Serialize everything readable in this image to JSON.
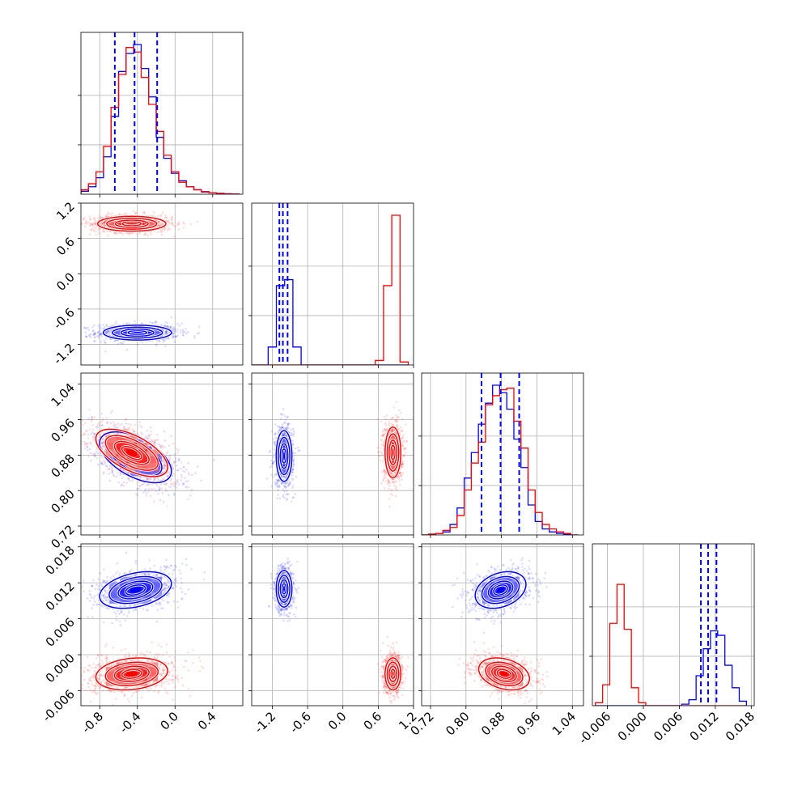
{
  "chart_data": {
    "type": "corner",
    "grid": true,
    "series": [
      {
        "color": "#0000ff"
      },
      {
        "color": "#ff0000"
      }
    ],
    "params": [
      {
        "range": [
          -1.0,
          0.72
        ],
        "ticks": [
          "-0.8",
          "-0.4",
          "0.0",
          "0.4"
        ],
        "tick_values": [
          -0.8,
          -0.4,
          0.0,
          0.4
        ]
      },
      {
        "range": [
          -1.55,
          1.2
        ],
        "ticks": [
          "-1.2",
          "-0.6",
          "0.0",
          "0.6",
          "1.2"
        ],
        "tick_values": [
          -1.2,
          -0.6,
          0.0,
          0.6,
          1.2
        ]
      },
      {
        "range": [
          0.7,
          1.065
        ],
        "ticks": [
          "0.72",
          "0.80",
          "0.88",
          "0.96",
          "1.04"
        ],
        "tick_values": [
          0.72,
          0.8,
          0.88,
          0.96,
          1.04
        ]
      },
      {
        "range": [
          -0.0085,
          0.0185
        ],
        "ticks": [
          "-0.006",
          "0.000",
          "0.006",
          "0.012",
          "0.018"
        ],
        "tick_values": [
          -0.006,
          0.0,
          0.006,
          0.012,
          0.018
        ]
      }
    ],
    "y_tick_labels": {
      "1": [
        "1.2",
        "0.6",
        "0.0",
        "-0.6",
        "-1.2"
      ],
      "2": [
        "1.04",
        "0.96",
        "0.88",
        "0.80",
        "0.72"
      ],
      "3": [
        "0.018",
        "0.012",
        "0.006",
        "0.000",
        "-0.006"
      ]
    },
    "quantile_lines": {
      "0": [
        -0.64,
        -0.43,
        -0.19
      ],
      "1": [
        -1.08,
        -1.02,
        -0.94
      ],
      "2": [
        0.835,
        0.878,
        0.92
      ],
      "3": [
        0.0096,
        0.0108,
        0.0122
      ]
    },
    "histograms": [
      {
        "param": 0,
        "bin_edges": [
          -1.0,
          -0.92,
          -0.84,
          -0.76,
          -0.68,
          -0.6,
          -0.52,
          -0.44,
          -0.36,
          -0.28,
          -0.2,
          -0.12,
          -0.04,
          0.04,
          0.12,
          0.2,
          0.28,
          0.36,
          0.44,
          0.52,
          0.6,
          0.68
        ],
        "series": [
          {
            "color": "#0000ff",
            "counts": [
              0.02,
              0.05,
              0.11,
              0.25,
              0.52,
              0.82,
              0.94,
              1.0,
              0.84,
              0.65,
              0.38,
              0.24,
              0.14,
              0.09,
              0.05,
              0.03,
              0.015,
              0.01,
              0.006,
              0.003,
              0.001
            ]
          },
          {
            "color": "#ff0000",
            "counts": [
              0.03,
              0.07,
              0.15,
              0.32,
              0.58,
              0.8,
              0.98,
              0.95,
              0.78,
              0.6,
              0.42,
              0.26,
              0.15,
              0.08,
              0.05,
              0.03,
              0.018,
              0.01,
              0.005,
              0.002,
              0.001
            ]
          }
        ]
      },
      {
        "param": 1,
        "bin_edges": [
          -1.55,
          -1.41,
          -1.27,
          -1.13,
          -0.99,
          -0.85,
          -0.71,
          -0.57,
          -0.43,
          -0.29,
          -0.15,
          -0.01,
          0.13,
          0.27,
          0.41,
          0.55,
          0.69,
          0.83,
          0.97,
          1.11
        ],
        "series": [
          {
            "color": "#0000ff",
            "counts": [
              0.0,
              0.0,
              0.12,
              0.53,
              0.57,
              0.12,
              0.0,
              0.0,
              0.0,
              0.0,
              0.0,
              0.0,
              0.0,
              0.0,
              0.0,
              0.0,
              0.0,
              0.0,
              0.0
            ]
          },
          {
            "color": "#ff0000",
            "counts": [
              0.0,
              0.0,
              0.0,
              0.0,
              0.0,
              0.0,
              0.0,
              0.0,
              0.0,
              0.0,
              0.0,
              0.0,
              0.0,
              0.0,
              0.0,
              0.03,
              0.53,
              1.0,
              0.02
            ]
          }
        ]
      },
      {
        "param": 2,
        "bin_edges": [
          0.7,
          0.716,
          0.732,
          0.748,
          0.764,
          0.78,
          0.796,
          0.812,
          0.828,
          0.844,
          0.86,
          0.876,
          0.892,
          0.908,
          0.924,
          0.94,
          0.956,
          0.972,
          0.988,
          1.004,
          1.02,
          1.036,
          1.052
        ],
        "series": [
          {
            "color": "#0000ff",
            "counts": [
              0.0,
              0.005,
              0.01,
              0.02,
              0.07,
              0.18,
              0.38,
              0.55,
              0.74,
              0.88,
              1.0,
              0.95,
              0.84,
              0.64,
              0.45,
              0.2,
              0.09,
              0.04,
              0.02,
              0.01,
              0.005,
              0.0
            ]
          },
          {
            "color": "#ff0000",
            "counts": [
              0.0,
              0.005,
              0.01,
              0.03,
              0.05,
              0.13,
              0.3,
              0.48,
              0.62,
              0.87,
              0.93,
              0.97,
              0.98,
              0.76,
              0.58,
              0.3,
              0.15,
              0.07,
              0.04,
              0.02,
              0.01,
              0.0
            ]
          }
        ]
      },
      {
        "param": 3,
        "bin_edges": [
          -0.008,
          -0.0068,
          -0.0056,
          -0.0044,
          -0.0032,
          -0.002,
          -0.0008,
          0.0004,
          0.0016,
          0.0028,
          0.004,
          0.0052,
          0.0064,
          0.0076,
          0.0088,
          0.01,
          0.0112,
          0.0124,
          0.0136,
          0.0148,
          0.016,
          0.0172
        ],
        "series": [
          {
            "color": "#0000ff",
            "counts": [
              0.0,
              0.0,
              0.0,
              0.0,
              0.0,
              0.0,
              0.0,
              0.0,
              0.0,
              0.0,
              0.0,
              0.0,
              0.01,
              0.04,
              0.2,
              0.38,
              0.5,
              0.47,
              0.27,
              0.12,
              0.03
            ]
          },
          {
            "color": "#ff0000",
            "counts": [
              0.02,
              0.14,
              0.55,
              0.81,
              0.51,
              0.12,
              0.02,
              0.0,
              0.0,
              0.0,
              0.0,
              0.0,
              0.0,
              0.0,
              0.0,
              0.0,
              0.0,
              0.0,
              0.0,
              0.0,
              0.0
            ]
          }
        ]
      }
    ],
    "contour_levels": [
      0.2,
      0.5,
      0.8,
      0.95
    ],
    "pairs": [
      {
        "xparam": 0,
        "yparam": 1,
        "populations": [
          {
            "color": "#0000ff",
            "center": [
              -0.4,
              -1.0
            ],
            "std": [
              0.19,
              0.066
            ],
            "rho": 0.0
          },
          {
            "color": "#ff0000",
            "center": [
              -0.46,
              0.85
            ],
            "std": [
              0.19,
              0.066
            ],
            "rho": 0.0
          }
        ]
      },
      {
        "xparam": 0,
        "yparam": 2,
        "populations": [
          {
            "color": "#0000ff",
            "center": [
              -0.42,
              0.875
            ],
            "std": [
              0.2,
              0.03
            ],
            "rho": -0.55
          },
          {
            "color": "#ff0000",
            "center": [
              -0.46,
              0.885
            ],
            "std": [
              0.2,
              0.028
            ],
            "rho": -0.6
          }
        ]
      },
      {
        "xparam": 1,
        "yparam": 2,
        "populations": [
          {
            "color": "#0000ff",
            "center": [
              -1.0,
              0.878
            ],
            "std": [
              0.07,
              0.03
            ],
            "rho": 0.0
          },
          {
            "color": "#ff0000",
            "center": [
              0.85,
              0.886
            ],
            "std": [
              0.07,
              0.03
            ],
            "rho": 0.0
          }
        ]
      },
      {
        "xparam": 0,
        "yparam": 3,
        "populations": [
          {
            "color": "#0000ff",
            "center": [
              -0.42,
              0.0108
            ],
            "std": [
              0.2,
              0.0016
            ],
            "rho": 0.35
          },
          {
            "color": "#ff0000",
            "center": [
              -0.46,
              -0.0032
            ],
            "std": [
              0.2,
              0.0014
            ],
            "rho": 0.2
          }
        ]
      },
      {
        "xparam": 1,
        "yparam": 3,
        "populations": [
          {
            "color": "#0000ff",
            "center": [
              -1.0,
              0.011
            ],
            "std": [
              0.07,
              0.0016
            ],
            "rho": 0.0
          },
          {
            "color": "#ff0000",
            "center": [
              0.85,
              -0.0032
            ],
            "std": [
              0.07,
              0.0014
            ],
            "rho": 0.0
          }
        ]
      },
      {
        "xparam": 2,
        "yparam": 3,
        "populations": [
          {
            "color": "#0000ff",
            "center": [
              0.878,
              0.0108
            ],
            "std": [
              0.03,
              0.0016
            ],
            "rho": 0.3
          },
          {
            "color": "#ff0000",
            "center": [
              0.886,
              -0.0032
            ],
            "std": [
              0.03,
              0.0014
            ],
            "rho": -0.3
          }
        ]
      }
    ]
  }
}
